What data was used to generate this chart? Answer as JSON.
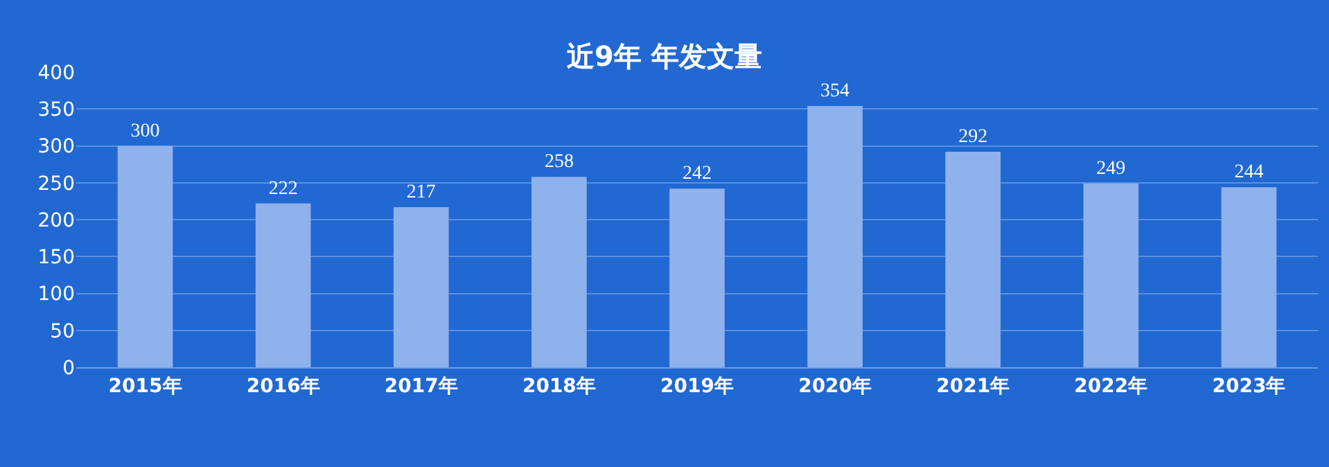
{
  "chart_data": {
    "type": "bar",
    "title": "近9年 年发文量",
    "categories": [
      "2015年",
      "2016年",
      "2017年",
      "2018年",
      "2019年",
      "2020年",
      "2021年",
      "2022年",
      "2023年"
    ],
    "values": [
      300,
      222,
      217,
      258,
      242,
      354,
      292,
      249,
      244
    ],
    "color": "#8fb1ec",
    "data_labels": true,
    "grid": "y",
    "legend": false,
    "ylim": [
      0,
      400
    ],
    "yticks": [
      0,
      50,
      100,
      150,
      200,
      250,
      300,
      350,
      400
    ]
  }
}
